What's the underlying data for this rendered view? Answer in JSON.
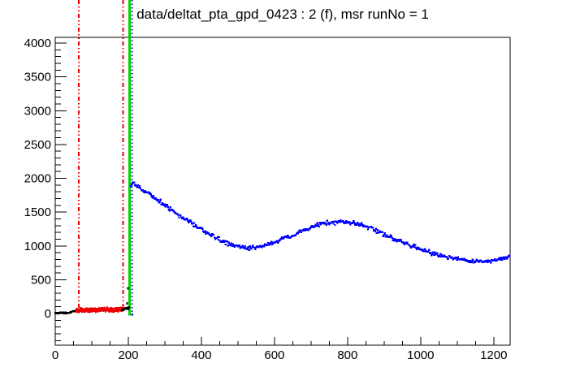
{
  "window": {
    "background": "#ffffff"
  },
  "chart_data": {
    "type": "scatter",
    "title": "data/deltat_pta_gpd_0423 : 2 (f), msr runNo = 1",
    "xlabel": "",
    "ylabel": "",
    "xlim": [
      0,
      1245
    ],
    "ylim": [
      -468,
      4084
    ],
    "grid": false,
    "legend": null,
    "x_axis": {
      "major_ticks": [
        0,
        200,
        400,
        600,
        800,
        1000,
        1200
      ],
      "labels": [
        "0",
        "200",
        "400",
        "600",
        "800",
        "1000",
        "1200"
      ],
      "minor_step": 50
    },
    "y_axis": {
      "major_ticks": [
        0,
        500,
        1000,
        1500,
        2000,
        2500,
        3000,
        3500,
        4000
      ],
      "labels": [
        "0",
        "500",
        "1000",
        "1500",
        "2000",
        "2500",
        "3000",
        "3500",
        "4000"
      ],
      "minor_step": 100
    },
    "vlines": [
      {
        "name": "bkg-range-start-line",
        "x": 64,
        "color": "#ee0000",
        "style": "dashdot",
        "width": 2,
        "bottom_value": 0
      },
      {
        "name": "bkg-range-end-line",
        "x": 186,
        "color": "#ee0000",
        "style": "dashdot",
        "width": 2,
        "bottom_value": 0
      },
      {
        "name": "t0-line",
        "x": 203,
        "color": "#00d300",
        "style": "solid",
        "width": 3,
        "bottom_value": -30
      },
      {
        "name": "data-range-start-line",
        "x": 210,
        "color": "#0000ff",
        "style": "dotted",
        "width": 2,
        "bottom_value": -30
      }
    ],
    "series": [
      {
        "name": "pre-background-counts",
        "color": "#000000",
        "marker_size": [
          2,
          2.6
        ],
        "jitter": 9,
        "step": 2.2,
        "anchors": [
          [
            0,
            8
          ],
          [
            36,
            10
          ],
          [
            46,
            26
          ],
          [
            58,
            42
          ]
        ],
        "extra_points": []
      },
      {
        "name": "background-window-counts",
        "color": "#ee0000",
        "marker_size": [
          1.8,
          5.5
        ],
        "jitter": 26,
        "step": 2.2,
        "anchors": [
          [
            58,
            50
          ],
          [
            120,
            55
          ],
          [
            187,
            58
          ]
        ],
        "extra_points": []
      },
      {
        "name": "t0-region-counts",
        "color": "#000000",
        "marker_size": [
          2,
          3
        ],
        "jitter": 28,
        "step": 2.0,
        "anchors": [
          [
            182,
            55
          ],
          [
            202,
            85
          ]
        ],
        "extra_points": [
          [
            197,
            150
          ],
          [
            199,
            372
          ]
        ]
      },
      {
        "name": "decay-signal-counts",
        "color": "#0000ff",
        "marker_size": [
          2.4,
          2.4
        ],
        "jitter": 44,
        "step": 2.2,
        "anchors": [
          [
            207,
            1890
          ],
          [
            211,
            1950
          ],
          [
            216,
            1920
          ],
          [
            222,
            1895
          ],
          [
            230,
            1862
          ],
          [
            240,
            1828
          ],
          [
            250,
            1795
          ],
          [
            270,
            1720
          ],
          [
            290,
            1645
          ],
          [
            310,
            1565
          ],
          [
            330,
            1490
          ],
          [
            350,
            1415
          ],
          [
            370,
            1345
          ],
          [
            390,
            1275
          ],
          [
            410,
            1210
          ],
          [
            430,
            1150
          ],
          [
            450,
            1095
          ],
          [
            470,
            1048
          ],
          [
            490,
            1010
          ],
          [
            510,
            982
          ],
          [
            530,
            968
          ],
          [
            550,
            975
          ],
          [
            570,
            1000
          ],
          [
            590,
            1035
          ],
          [
            610,
            1075
          ],
          [
            630,
            1120
          ],
          [
            650,
            1150
          ],
          [
            670,
            1205
          ],
          [
            690,
            1250
          ],
          [
            710,
            1290
          ],
          [
            730,
            1330
          ],
          [
            750,
            1342
          ],
          [
            770,
            1352
          ],
          [
            790,
            1355
          ],
          [
            810,
            1345
          ],
          [
            830,
            1322
          ],
          [
            850,
            1290
          ],
          [
            870,
            1248
          ],
          [
            890,
            1200
          ],
          [
            910,
            1148
          ],
          [
            930,
            1095
          ],
          [
            950,
            1060
          ],
          [
            970,
            1015
          ],
          [
            990,
            975
          ],
          [
            1010,
            930
          ],
          [
            1030,
            895
          ],
          [
            1050,
            862
          ],
          [
            1070,
            840
          ],
          [
            1090,
            820
          ],
          [
            1110,
            803
          ],
          [
            1130,
            788
          ],
          [
            1150,
            776
          ],
          [
            1170,
            770
          ],
          [
            1185,
            772
          ],
          [
            1200,
            782
          ],
          [
            1215,
            805
          ],
          [
            1230,
            825
          ],
          [
            1244,
            855
          ]
        ],
        "extra_points": [
          [
            211,
            -15
          ]
        ]
      }
    ]
  }
}
